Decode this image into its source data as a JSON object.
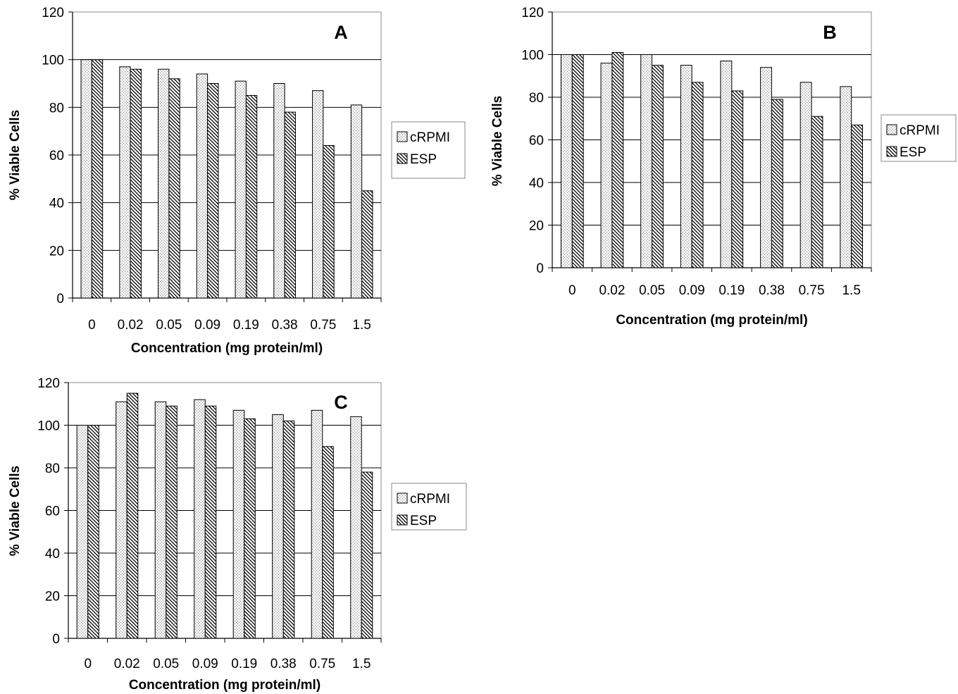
{
  "colors": {
    "cRPMI_fill": "#dcdcdc",
    "ESP_fill": "#ffffff",
    "stroke": "#000000"
  },
  "chart_data": [
    {
      "type": "bar",
      "panel_label": "A",
      "categories": [
        "0",
        "0.02",
        "0.05",
        "0.09",
        "0.19",
        "0.38",
        "0.75",
        "1.5"
      ],
      "series": [
        {
          "name": "cRPMI",
          "values": [
            100,
            97,
            96,
            94,
            91,
            90,
            87,
            81
          ]
        },
        {
          "name": "ESP",
          "values": [
            100,
            96,
            92,
            90,
            85,
            78,
            64,
            45
          ]
        }
      ],
      "xlabel": "Concentration (mg protein/ml)",
      "ylabel": "% Viable Cells",
      "ylim": [
        0,
        120
      ],
      "yticks": [
        0,
        20,
        40,
        60,
        80,
        100,
        120
      ],
      "grid": true,
      "legend": "right"
    },
    {
      "type": "bar",
      "panel_label": "B",
      "categories": [
        "0",
        "0.02",
        "0.05",
        "0.09",
        "0.19",
        "0.38",
        "0.75",
        "1.5"
      ],
      "series": [
        {
          "name": "cRPMI",
          "values": [
            100,
            96,
            100,
            95,
            97,
            94,
            87,
            85
          ]
        },
        {
          "name": "ESP",
          "values": [
            100,
            101,
            95,
            87,
            83,
            79,
            71,
            67
          ]
        }
      ],
      "xlabel": "Concentration (mg protein/ml)",
      "ylabel": "% Viable Cells",
      "ylim": [
        0,
        120
      ],
      "yticks": [
        0,
        20,
        40,
        60,
        80,
        100,
        120
      ],
      "grid": true,
      "legend": "right"
    },
    {
      "type": "bar",
      "panel_label": "C",
      "categories": [
        "0",
        "0.02",
        "0.05",
        "0.09",
        "0.19",
        "0.38",
        "0.75",
        "1.5"
      ],
      "series": [
        {
          "name": "cRPMI",
          "values": [
            100,
            111,
            111,
            112,
            107,
            105,
            107,
            104
          ]
        },
        {
          "name": "ESP",
          "values": [
            100,
            115,
            109,
            109,
            103,
            102,
            90,
            78
          ]
        }
      ],
      "xlabel": "Concentration (mg protein/ml)",
      "ylabel": "% Viable Cells",
      "ylim": [
        0,
        120
      ],
      "yticks": [
        0,
        20,
        40,
        60,
        80,
        100,
        120
      ],
      "grid": true,
      "legend": "right"
    }
  ]
}
